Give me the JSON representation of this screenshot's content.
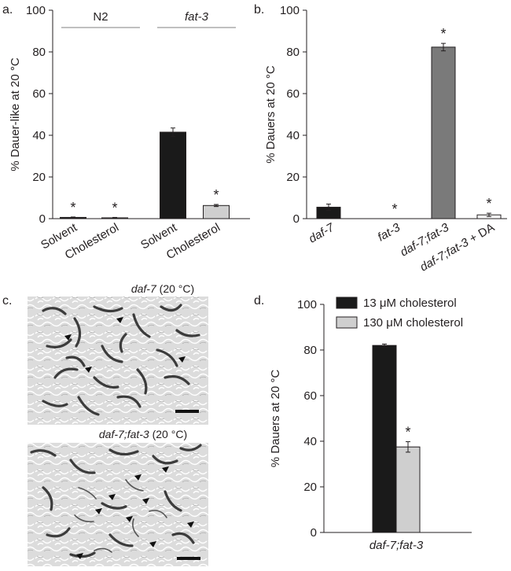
{
  "panels": {
    "a": {
      "label": "a."
    },
    "b": {
      "label": "b."
    },
    "c": {
      "label": "c.",
      "image1_caption_genotype": "daf-7",
      "image1_caption_temp": " (20 °C)",
      "image2_caption_genotype": "daf-7;fat-3",
      "image2_caption_temp": " (20 °C)"
    },
    "d": {
      "label": "d."
    }
  },
  "colors": {
    "black": "#1a1a1a",
    "dark_gray": "#7a7a7a",
    "light_gray": "#cfcfcf",
    "white": "#ffffff"
  },
  "chart_data": [
    {
      "id": "a",
      "type": "bar",
      "ylabel": "% Dauer-like at 20 °C",
      "ylim": [
        0,
        100
      ],
      "yticks": [
        "0",
        "20",
        "40",
        "60",
        "80",
        "100"
      ],
      "group_labels": [
        "N2",
        "fat-3"
      ],
      "categories": [
        "Solvent",
        "Cholesterol",
        "Solvent",
        "Cholesterol"
      ],
      "values": [
        0.6,
        0.4,
        41.5,
        6.3
      ],
      "errors": [
        0.2,
        0.2,
        2.0,
        0.5
      ],
      "fills": [
        "black",
        "light_gray",
        "black",
        "light_gray"
      ],
      "significance": [
        "*",
        "*",
        "",
        "*"
      ]
    },
    {
      "id": "b",
      "type": "bar",
      "ylabel": "% Dauers at 20 °C",
      "ylim": [
        0,
        100
      ],
      "yticks": [
        "0",
        "20",
        "40",
        "60",
        "80",
        "100"
      ],
      "categories": [
        "daf-7",
        "fat-3",
        "daf-7;fat-3",
        "daf-7;fat-3 + DA"
      ],
      "values": [
        5.5,
        0,
        82.3,
        1.8
      ],
      "errors": [
        1.5,
        0,
        1.8,
        0.8
      ],
      "fills": [
        "black",
        "white",
        "dark_gray",
        "white"
      ],
      "significance": [
        "",
        "*",
        "*",
        "*"
      ]
    },
    {
      "id": "d",
      "type": "bar",
      "ylabel": "% Dauers at 20 °C",
      "ylim": [
        0,
        100
      ],
      "yticks": [
        "0",
        "20",
        "40",
        "60",
        "80",
        "100"
      ],
      "categories": [
        "daf-7;fat-3"
      ],
      "series": [
        {
          "name": "13 μM cholesterol",
          "values": [
            82.0
          ],
          "errors": [
            0.6
          ],
          "fill": "black"
        },
        {
          "name": "130 μM cholesterol",
          "values": [
            37.5
          ],
          "errors": [
            2.3
          ],
          "fill": "light_gray"
        }
      ],
      "significance": [
        "",
        "*"
      ],
      "legend": "top-left"
    }
  ]
}
